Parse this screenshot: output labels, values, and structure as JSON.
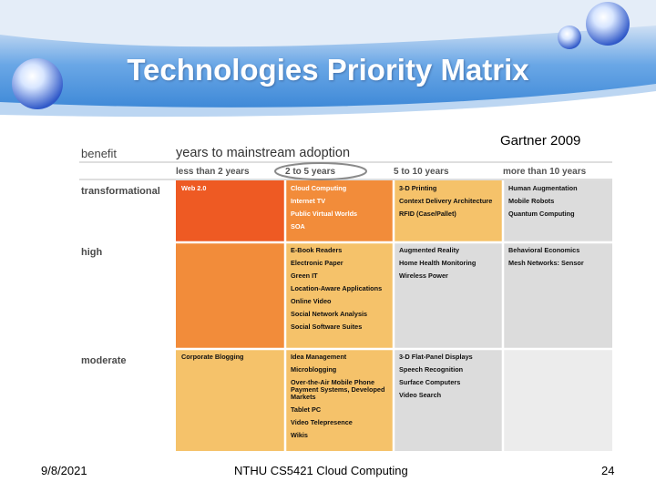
{
  "slide": {
    "title": "Technologies Priority Matrix",
    "source": "Gartner 2009",
    "colors": {
      "banner": "#4a90d9",
      "red": "#ee5a23",
      "orange": "#f28c3a",
      "tan": "#f5c26a",
      "gray": "#dcdcdc"
    }
  },
  "matrix": {
    "row_axis_title": "benefit",
    "col_axis_title": "years to mainstream adoption",
    "columns": [
      "less than 2 years",
      "2 to 5 years",
      "5 to 10 years",
      "more than 10 years"
    ],
    "rows": [
      {
        "label": "transformational",
        "cells": [
          [
            "Web 2.0"
          ],
          [
            "Cloud Computing",
            "Internet TV",
            "Public Virtual Worlds",
            "SOA"
          ],
          [
            "3-D Printing",
            "Context Delivery Architecture",
            "RFID (Case/Pallet)"
          ],
          [
            "Human Augmentation",
            "Mobile Robots",
            "Quantum Computing"
          ]
        ]
      },
      {
        "label": "high",
        "cells": [
          [],
          [
            "E-Book Readers",
            "Electronic Paper",
            "Green IT",
            "Location-Aware Applications",
            "Online Video",
            "Social Network Analysis",
            "Social Software Suites"
          ],
          [
            "Augmented Reality",
            "Home Health Monitoring",
            "Wireless Power"
          ],
          [
            "Behavioral Economics",
            "Mesh Networks: Sensor"
          ]
        ]
      },
      {
        "label": "moderate",
        "cells": [
          [
            "Corporate Blogging"
          ],
          [
            "Idea Management",
            "Microblogging",
            "Over-the-Air Mobile Phone Payment Systems, Developed Markets",
            "Tablet PC",
            "Video Telepresence",
            "Wikis"
          ],
          [
            "3-D Flat-Panel Displays",
            "Speech Recognition",
            "Surface Computers",
            "Video Search"
          ],
          []
        ]
      }
    ]
  },
  "footer": {
    "date": "9/8/2021",
    "course": "NTHU CS5421 Cloud Computing",
    "page": "24"
  }
}
